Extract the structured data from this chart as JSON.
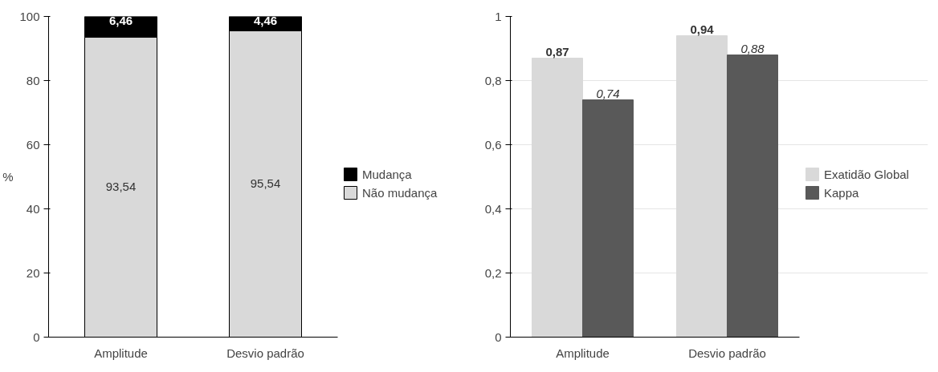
{
  "chart_data": [
    {
      "type": "bar",
      "stacked": true,
      "categories": [
        "Amplitude",
        "Desvio padrão"
      ],
      "ylabel": "%",
      "ylim": [
        0,
        100
      ],
      "yticks": [
        0,
        20,
        40,
        60,
        80,
        100
      ],
      "grid": false,
      "legend": "right",
      "series": [
        {
          "name": "Não mudança",
          "color": "#d9d9d9",
          "values": [
            93.54,
            95.54
          ],
          "value_labels": [
            "93,54",
            "95,54"
          ]
        },
        {
          "name": "Mudança",
          "color": "#000000",
          "values": [
            6.46,
            4.46
          ],
          "value_labels": [
            "6,46",
            "4,46"
          ]
        }
      ]
    },
    {
      "type": "bar",
      "categories": [
        "Amplitude",
        "Desvio padrão"
      ],
      "ylim": [
        0,
        1
      ],
      "yticks": [
        0,
        {
          "value": 0.2,
          "label": "0,2"
        },
        {
          "value": 0.4,
          "label": "0,4"
        },
        {
          "value": 0.6,
          "label": "0,6"
        },
        {
          "value": 0.8,
          "label": "0,8"
        },
        1
      ],
      "grid": "y",
      "legend": "right",
      "series": [
        {
          "name": "Exatidão Global",
          "color": "#d9d9d9",
          "values": [
            0.87,
            0.94
          ],
          "value_labels": [
            "0,87",
            "0,94"
          ]
        },
        {
          "name": "Kappa",
          "color": "#595959",
          "values": [
            0.74,
            0.88
          ],
          "value_labels": [
            "0,74",
            "0,88"
          ]
        }
      ]
    }
  ]
}
